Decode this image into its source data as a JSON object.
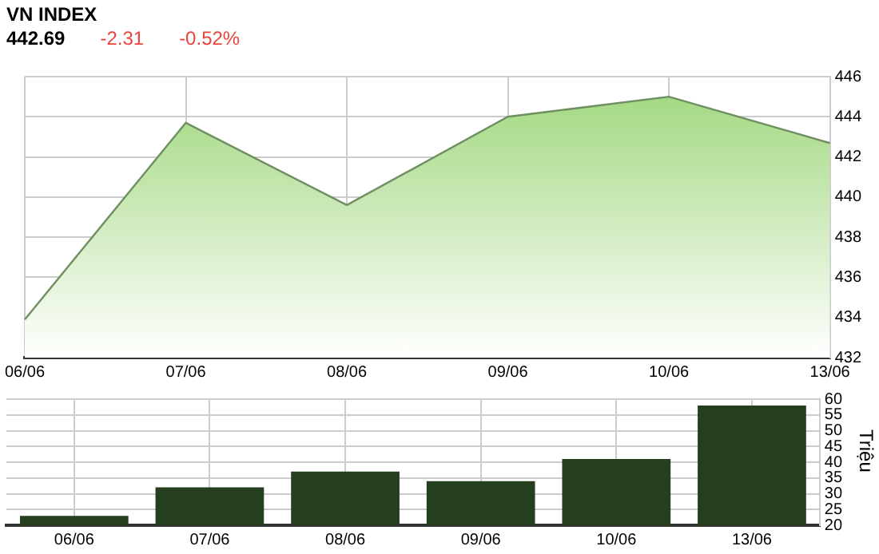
{
  "chart_data": [
    {
      "type": "area",
      "title": "VN INDEX",
      "annotations": [
        "442.69",
        "-2.31",
        "-0.52%"
      ],
      "categories": [
        "06/06",
        "07/06",
        "08/06",
        "09/06",
        "10/06",
        "13/06"
      ],
      "series": [
        {
          "color": "#9ed67a",
          "values": [
            433.9,
            443.7,
            439.6,
            444.0,
            445.0,
            442.69
          ]
        }
      ],
      "ylim": [
        432,
        446
      ],
      "yticks": [
        432,
        434,
        436,
        438,
        440,
        442,
        444,
        446
      ],
      "grid": true,
      "legend": false
    },
    {
      "type": "bar",
      "ylabel": "Triệu",
      "categories": [
        "06/06",
        "07/06",
        "08/06",
        "09/06",
        "10/06",
        "13/06"
      ],
      "series": [
        {
          "color": "#253f1e",
          "values": [
            23,
            32,
            37,
            34,
            41,
            58
          ]
        }
      ],
      "ylim": [
        20,
        60
      ],
      "yticks": [
        20,
        25,
        30,
        35,
        40,
        45,
        50,
        55,
        60
      ],
      "grid": true,
      "legend": false
    }
  ]
}
